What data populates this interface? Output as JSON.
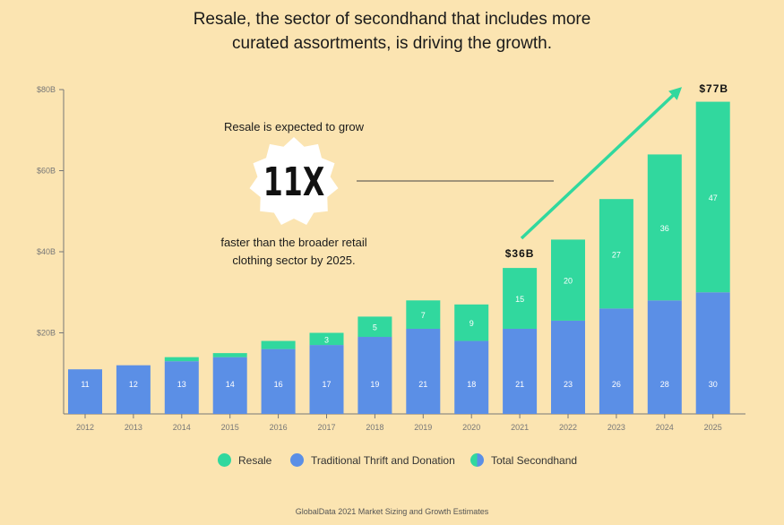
{
  "title_line1": "Resale, the sector of secondhand that includes more",
  "title_line2": "curated assortments, is driving the growth.",
  "callout": {
    "top": "Resale is expected to grow",
    "multiplier": "11X",
    "bottom_line1": "faster than the broader retail",
    "bottom_line2": "clothing sector by 2025."
  },
  "legend": {
    "resale": "Resale",
    "thrift": "Traditional Thrift and Donation",
    "total": "Total Secondhand"
  },
  "source": "GlobalData 2021 Market Sizing and Growth Estimates",
  "colors": {
    "resale": "#31d89e",
    "thrift": "#5b8fe6",
    "background": "#fbe4b1"
  },
  "chart_data": {
    "type": "bar",
    "stacked": true,
    "categories": [
      "2012",
      "2013",
      "2014",
      "2015",
      "2016",
      "2017",
      "2018",
      "2019",
      "2020",
      "2021",
      "2022",
      "2023",
      "2024",
      "2025"
    ],
    "series": [
      {
        "name": "Traditional Thrift and Donation",
        "values": [
          11,
          12,
          13,
          14,
          16,
          17,
          19,
          21,
          18,
          21,
          23,
          26,
          28,
          30
        ]
      },
      {
        "name": "Resale",
        "values": [
          0,
          0,
          1,
          1,
          2,
          3,
          5,
          7,
          9,
          15,
          20,
          27,
          36,
          47
        ]
      }
    ],
    "series_labels": {
      "Traditional Thrift and Donation": [
        "11",
        "12",
        "13",
        "14",
        "16",
        "17",
        "19",
        "21",
        "18",
        "21",
        "23",
        "26",
        "28",
        "30"
      ],
      "Resale": [
        "",
        "",
        "",
        "",
        "",
        "3",
        "5",
        "7",
        "9",
        "15",
        "20",
        "27",
        "36",
        "47"
      ]
    },
    "y_ticks": [
      20,
      40,
      60,
      80
    ],
    "y_tick_labels": [
      "$20B",
      "$40B",
      "$60B",
      "$80B"
    ],
    "ylim": [
      0,
      80
    ],
    "annotations": [
      {
        "category": "2021",
        "text": "$36B"
      },
      {
        "category": "2025",
        "text": "$77B"
      }
    ]
  }
}
